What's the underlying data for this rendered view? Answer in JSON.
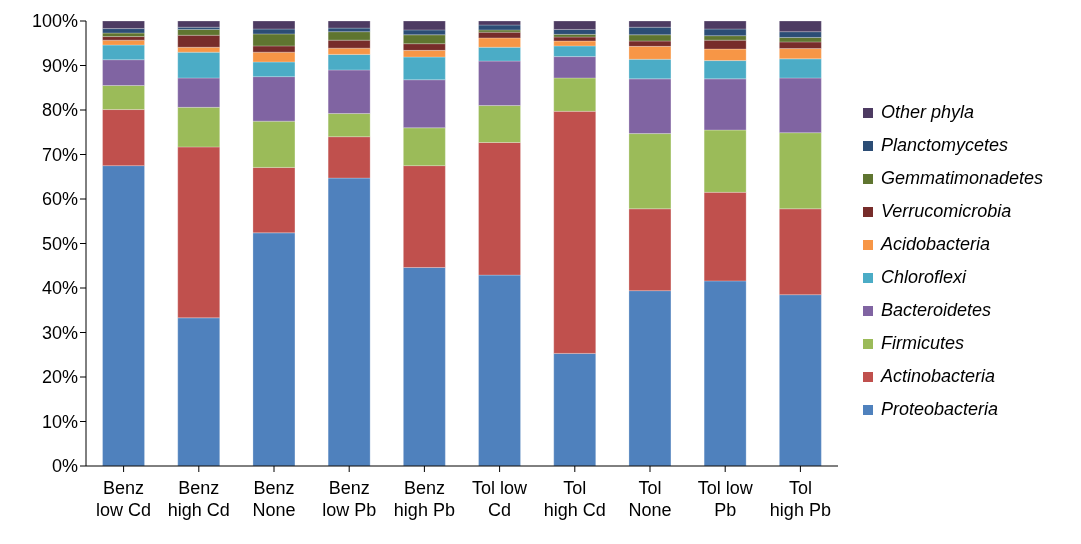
{
  "chart_data": {
    "type": "bar",
    "stacked": true,
    "categories": [
      "Benz\nlow Cd",
      "Benz\nhigh Cd",
      "Benz\nNone",
      "Benz\nlow Pb",
      "Benz\nhigh Pb",
      "Tol low\nCd",
      "Tol\nhigh Cd",
      "Tol\nNone",
      "Tol low\nPb",
      "Tol\nhigh Pb"
    ],
    "series": [
      {
        "name": "Proteobacteria",
        "color": "#4f81bd",
        "values": [
          67.5,
          33.3,
          52.4,
          64.7,
          44.6,
          42.9,
          25.3,
          39.4,
          41.6,
          38.5
        ]
      },
      {
        "name": "Actinobacteria",
        "color": "#c0504d",
        "values": [
          12.6,
          38.4,
          14.7,
          9.3,
          22.9,
          29.8,
          54.4,
          18.4,
          19.9,
          19.3
        ]
      },
      {
        "name": "Firmicutes",
        "color": "#9bbb59",
        "values": [
          5.4,
          8.9,
          10.4,
          5.2,
          8.5,
          8.3,
          7.5,
          16.9,
          14.0,
          17.1
        ]
      },
      {
        "name": "Bacteroidetes",
        "color": "#8064a2",
        "values": [
          5.8,
          6.6,
          10.0,
          9.8,
          10.8,
          10.0,
          4.8,
          12.3,
          11.5,
          12.3
        ]
      },
      {
        "name": "Chloroflexi",
        "color": "#4bacc6",
        "values": [
          3.3,
          5.8,
          3.3,
          3.5,
          5.1,
          3.1,
          2.4,
          4.4,
          4.1,
          4.3
        ]
      },
      {
        "name": "Acidobacteria",
        "color": "#f79646",
        "values": [
          1.1,
          1.1,
          2.2,
          1.4,
          1.5,
          2.1,
          1.1,
          2.9,
          2.6,
          2.3
        ]
      },
      {
        "name": "Verrucomicrobia",
        "color": "#772c2a",
        "values": [
          0.8,
          2.7,
          1.4,
          1.8,
          1.5,
          1.3,
          0.9,
          1.2,
          2.0,
          1.5
        ]
      },
      {
        "name": "Gemmatimonadetes",
        "color": "#5f7530",
        "values": [
          0.8,
          1.3,
          2.7,
          1.9,
          2.0,
          0.5,
          0.6,
          1.4,
          1.0,
          1.0
        ]
      },
      {
        "name": "Planctomycetes",
        "color": "#2c4d75",
        "values": [
          1.0,
          0.5,
          1.1,
          0.8,
          1.1,
          1.1,
          1.1,
          1.7,
          1.5,
          1.3
        ]
      },
      {
        "name": "Other phyla",
        "color": "#4d3b62",
        "values": [
          1.7,
          1.5,
          1.8,
          1.6,
          2.0,
          0.9,
          1.9,
          1.4,
          1.8,
          2.4
        ]
      }
    ],
    "ylim": [
      0,
      100
    ],
    "yticks": [
      {
        "value": 0,
        "label": "0%"
      },
      {
        "value": 10,
        "label": "10%"
      },
      {
        "value": 20,
        "label": "20%"
      },
      {
        "value": 30,
        "label": "30%"
      },
      {
        "value": 40,
        "label": "40%"
      },
      {
        "value": 50,
        "label": "50%"
      },
      {
        "value": 60,
        "label": "60%"
      },
      {
        "value": 70,
        "label": "70%"
      },
      {
        "value": 80,
        "label": "80%"
      },
      {
        "value": 90,
        "label": "90%"
      },
      {
        "value": 100,
        "label": "100%"
      }
    ],
    "grid": false,
    "legend": "right"
  }
}
